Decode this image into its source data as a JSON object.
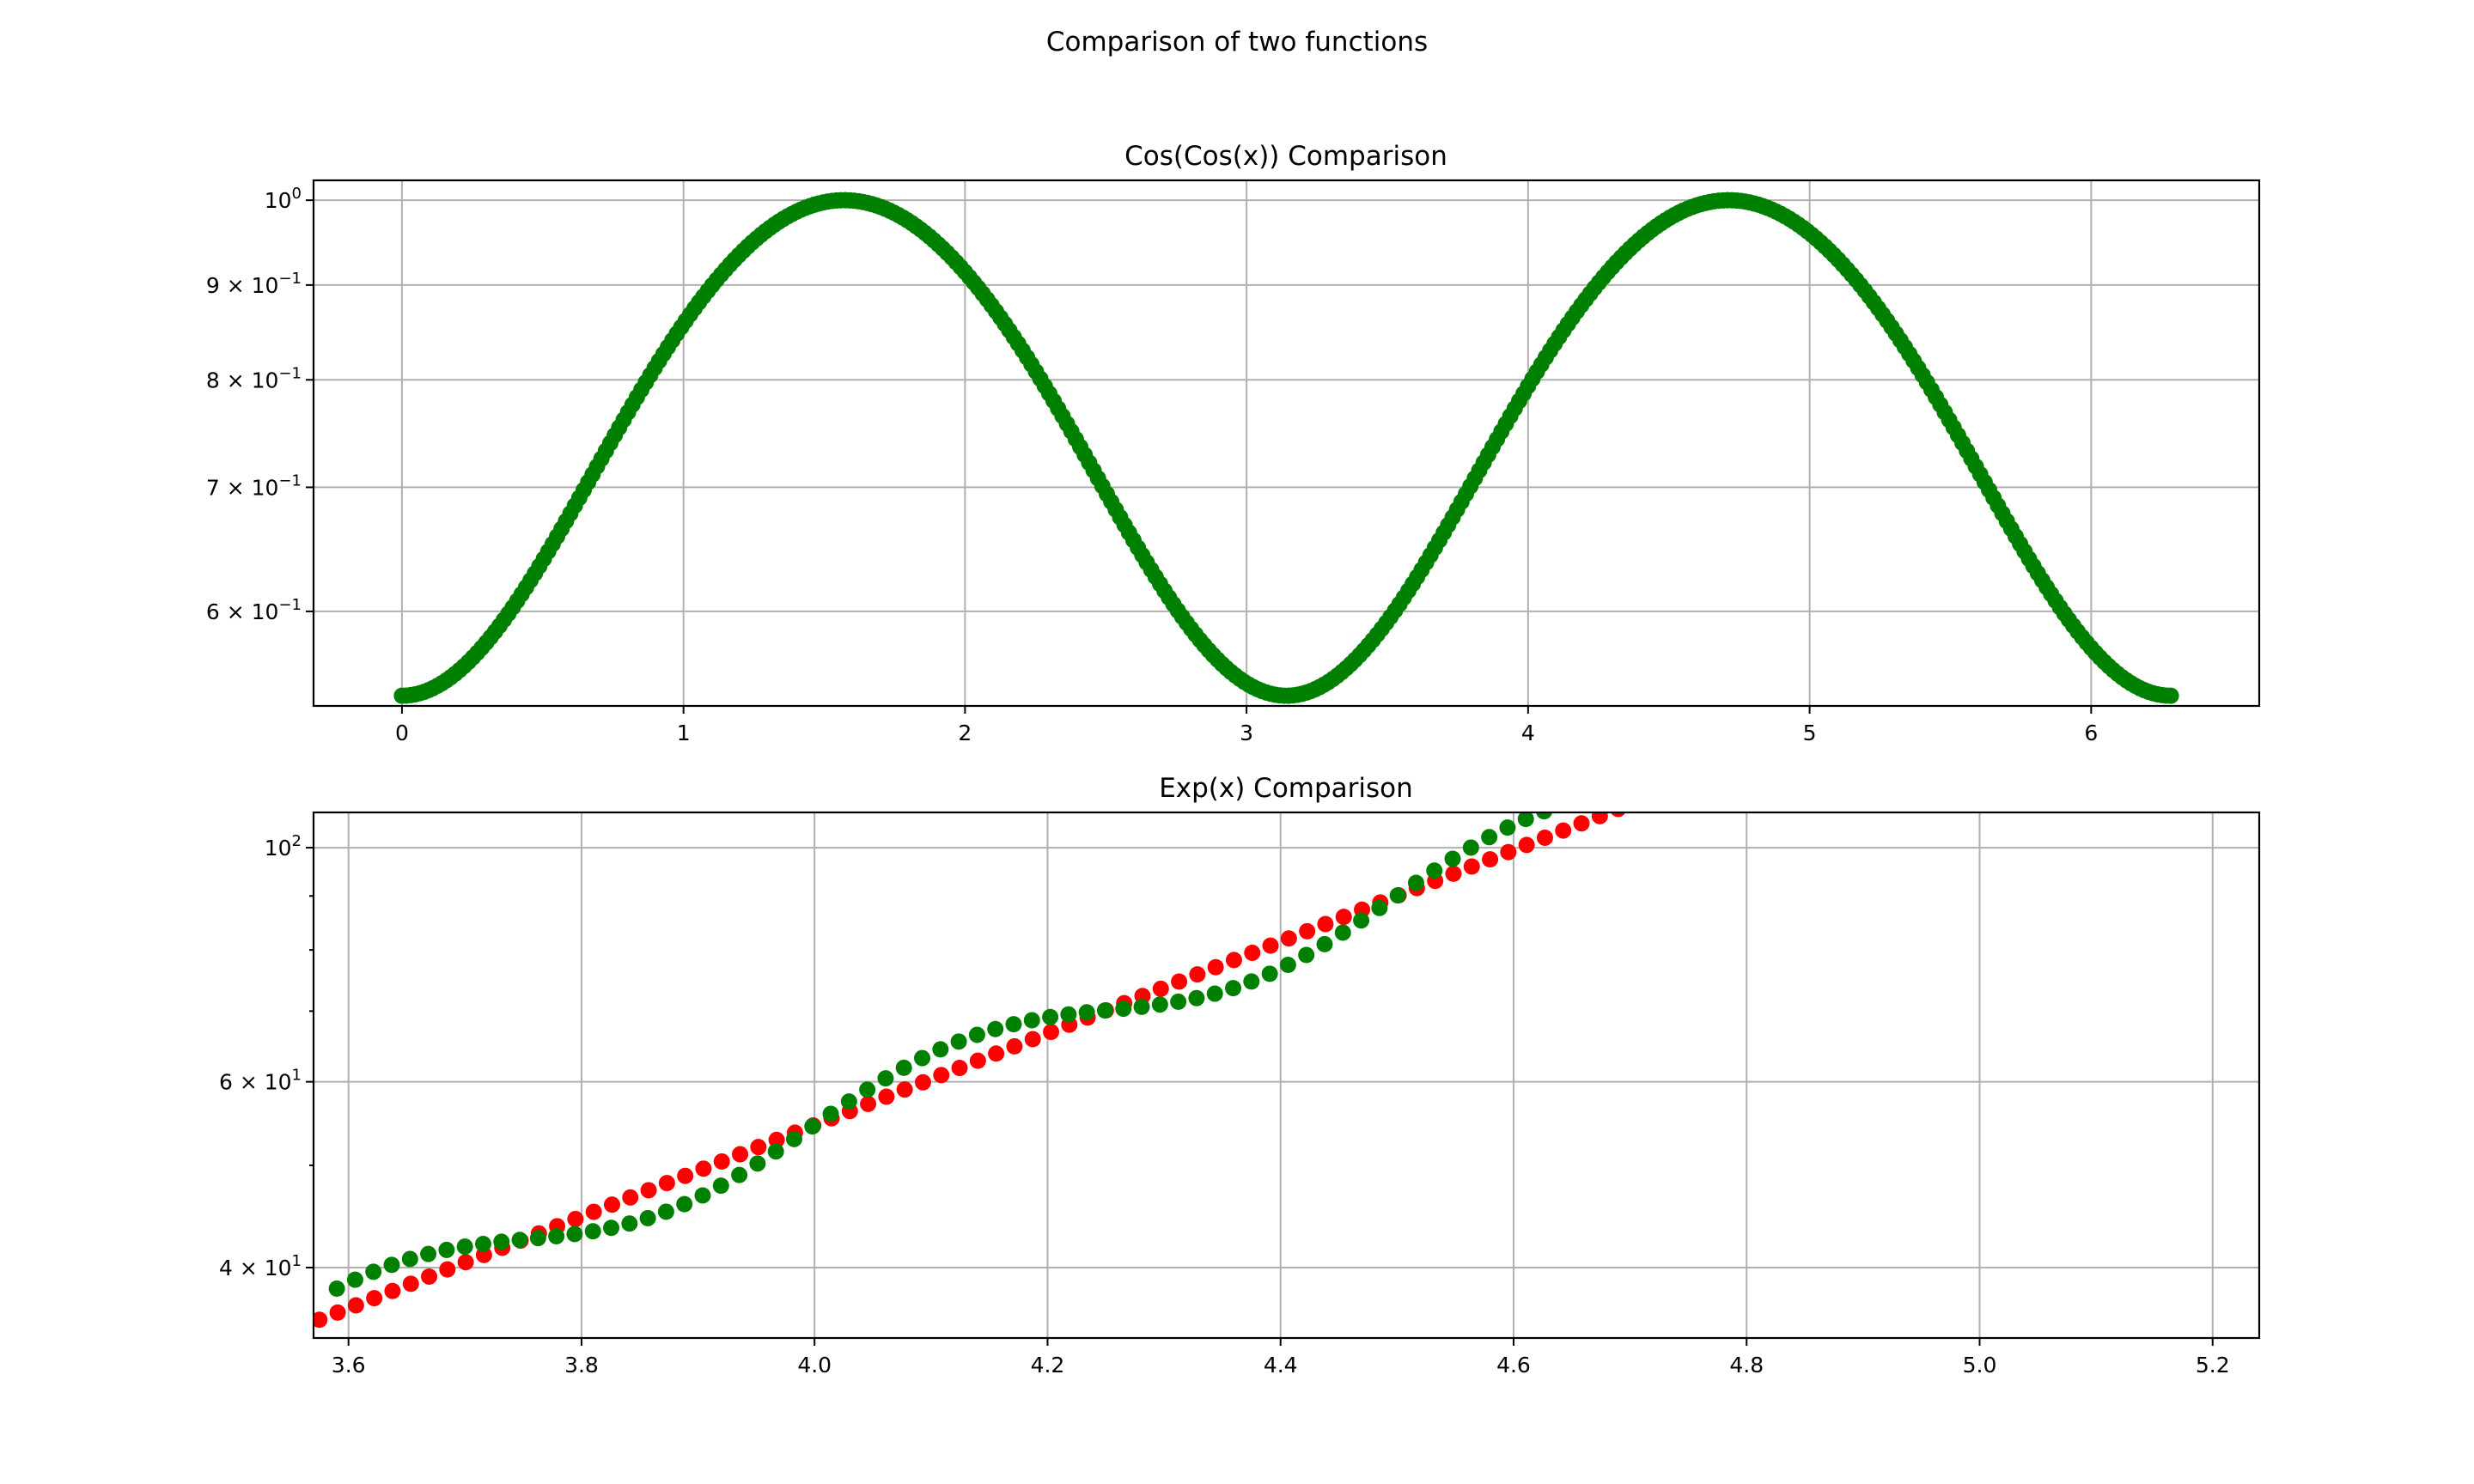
{
  "figure_title": "Comparison of two functions",
  "colors": {
    "green": "#008000",
    "red": "#ff0000",
    "grid": "#b0b0b0"
  },
  "chart_data": [
    {
      "type": "scatter",
      "title": "Cos(Cos(x)) Comparison",
      "xlabel": "",
      "ylabel": "",
      "yscale": "log",
      "xlim": [
        -0.314,
        6.597
      ],
      "ylim": [
        0.5335,
        1.025
      ],
      "x_ticks": [
        0,
        1,
        2,
        3,
        4,
        5,
        6
      ],
      "x_tick_labels": [
        "0",
        "1",
        "2",
        "3",
        "4",
        "5",
        "6"
      ],
      "y_ticks": [
        1.0,
        0.9,
        0.8,
        0.7,
        0.6
      ],
      "y_tick_labels": [
        {
          "mant": "",
          "base": "10",
          "exp": "0"
        },
        {
          "mant": "9 × ",
          "base": "10",
          "exp": "−1"
        },
        {
          "mant": "8 × ",
          "base": "10",
          "exp": "−1"
        },
        {
          "mant": "7 × ",
          "base": "10",
          "exp": "−1"
        },
        {
          "mant": "6 × ",
          "base": "10",
          "exp": "−1"
        }
      ],
      "grid": true,
      "series": [
        {
          "function": "cos(cos(x))",
          "x_range": [
            0,
            6.283
          ],
          "points": 400,
          "color": "green"
        }
      ]
    },
    {
      "type": "scatter",
      "title": "Exp(x) Comparison",
      "xlabel": "",
      "ylabel": "",
      "yscale": "log",
      "xlim": [
        3.57,
        5.24
      ],
      "ylim": [
        34.3,
        108.0
      ],
      "x_ticks": [
        3.6,
        3.8,
        4.0,
        4.2,
        4.4,
        4.6,
        4.8,
        5.0,
        5.2
      ],
      "x_tick_labels": [
        "3.6",
        "3.8",
        "4.0",
        "4.2",
        "4.4",
        "4.6",
        "4.8",
        "5.0",
        "5.2"
      ],
      "y_ticks": [
        100,
        60,
        40
      ],
      "y_tick_labels": [
        {
          "mant": "",
          "base": "10",
          "exp": "2"
        },
        {
          "mant": "6 × ",
          "base": "10",
          "exp": "1"
        },
        {
          "mant": "4 × ",
          "base": "10",
          "exp": "1"
        }
      ],
      "y_minor_ticks": [
        50,
        70,
        80,
        90
      ],
      "grid": true,
      "series": [
        {
          "function": "exp(x)",
          "x_range": [
            3.575,
            4.7
          ],
          "step": 0.0157,
          "color": "red"
        },
        {
          "function": "exp(x)·(1 + 0.06·sin(4πx))",
          "x_range": [
            3.59,
            4.68
          ],
          "step": 0.0157,
          "color": "green"
        }
      ]
    }
  ]
}
